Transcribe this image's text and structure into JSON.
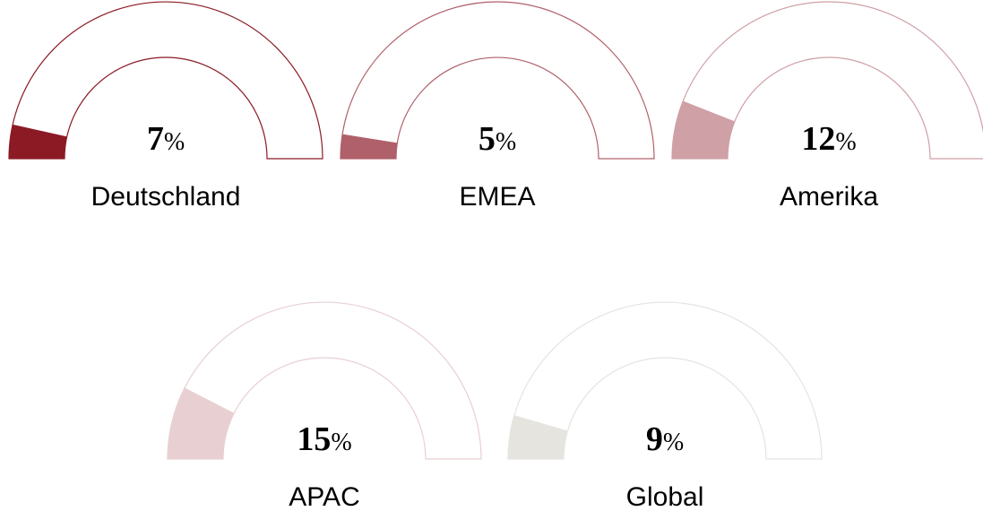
{
  "chart_data": [
    {
      "type": "gauge",
      "title": "Deutschland",
      "value": 7,
      "unit": "%",
      "color": "#8b1a24",
      "ylim": [
        0,
        100
      ]
    },
    {
      "type": "gauge",
      "title": "EMEA",
      "value": 5,
      "unit": "%",
      "color": "#b0606a",
      "ylim": [
        0,
        100
      ]
    },
    {
      "type": "gauge",
      "title": "Amerika",
      "value": 12,
      "unit": "%",
      "color": "#cfa0a6",
      "ylim": [
        0,
        100
      ]
    },
    {
      "type": "gauge",
      "title": "APAC",
      "value": 15,
      "unit": "%",
      "color": "#e8d0d2",
      "ylim": [
        0,
        100
      ]
    },
    {
      "type": "gauge",
      "title": "Global",
      "value": 9,
      "unit": "%",
      "color": "#e6e4df",
      "ylim": [
        0,
        100
      ]
    }
  ]
}
